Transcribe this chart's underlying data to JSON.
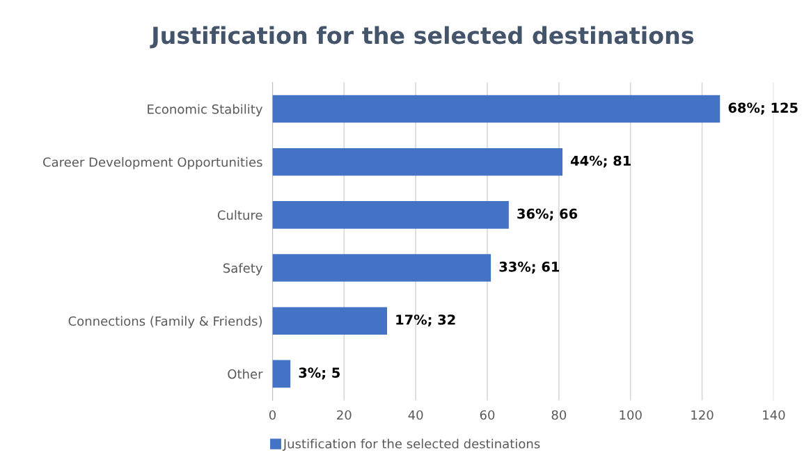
{
  "chart_data": {
    "type": "bar",
    "orientation": "horizontal",
    "title": "Justification for the selected destinations",
    "categories": [
      "Economic Stability",
      "Career Development Opportunities",
      "Culture",
      "Safety",
      "Connections (Family & Friends)",
      "Other"
    ],
    "series": [
      {
        "name": "Justification for the selected destinations",
        "color": "#4472c4",
        "values": [
          125,
          81,
          66,
          61,
          32,
          5
        ],
        "value_labels": [
          "68%; 125",
          "44%; 81",
          "36%; 66",
          "33%; 61",
          "17%; 32",
          "3%; 5"
        ]
      }
    ],
    "xlim": [
      0,
      140
    ],
    "xticks": [
      0,
      20,
      40,
      60,
      80,
      100,
      120,
      140
    ],
    "grid": "x",
    "legend": "bottom"
  }
}
